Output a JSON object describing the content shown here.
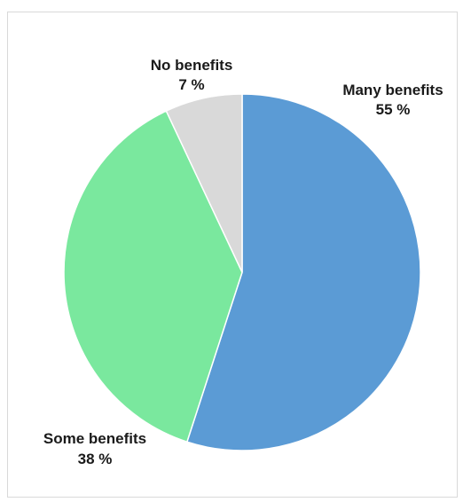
{
  "chart_data": {
    "type": "pie",
    "title": "",
    "start_angle_deg": 0,
    "direction": "clockwise",
    "legend": "none",
    "slices": [
      {
        "label": "Many benefits",
        "value": 55,
        "value_label": "55 %",
        "color": "#5b9bd5"
      },
      {
        "label": "Some benefits",
        "value": 38,
        "value_label": "38 %",
        "color": "#7ae89e"
      },
      {
        "label": "No benefits",
        "value": 7,
        "value_label": "7 %",
        "color": "#d9d9d9"
      }
    ]
  }
}
